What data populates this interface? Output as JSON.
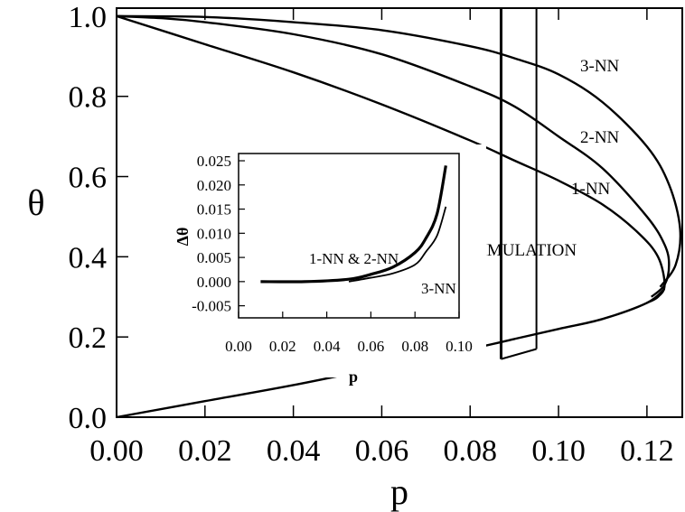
{
  "chart_data": [
    {
      "type": "line",
      "xlabel": "p",
      "ylabel": "θ",
      "xlim": [
        0.0,
        0.128
      ],
      "ylim": [
        0.0,
        1.02
      ],
      "xticks": [
        "0.00",
        "0.02",
        "0.04",
        "0.06",
        "0.08",
        "0.10",
        "0.12"
      ],
      "yticks": [
        "0.0",
        "0.2",
        "0.4",
        "0.6",
        "0.8",
        "1.0"
      ],
      "grid": false,
      "lower_branch": {
        "x": [
          0.0,
          0.02,
          0.04,
          0.06,
          0.08,
          0.09,
          0.1,
          0.11,
          0.12,
          0.124
        ],
        "y": [
          0.0,
          0.04,
          0.08,
          0.125,
          0.17,
          0.195,
          0.22,
          0.245,
          0.285,
          0.32
        ]
      },
      "series": [
        {
          "name": "1-NN",
          "x": [
            0.0,
            0.02,
            0.04,
            0.06,
            0.08,
            0.09,
            0.1,
            0.11,
            0.118,
            0.1225,
            0.124,
            0.1225,
            0.12
          ],
          "y": [
            1.0,
            0.93,
            0.86,
            0.78,
            0.69,
            0.64,
            0.59,
            0.53,
            0.46,
            0.4,
            0.33,
            0.3,
            0.285
          ]
        },
        {
          "name": "2-NN",
          "x": [
            0.0,
            0.01,
            0.02,
            0.04,
            0.06,
            0.08,
            0.09,
            0.1,
            0.11,
            0.12,
            0.124,
            0.125,
            0.124,
            0.121
          ],
          "y": [
            1.0,
            0.995,
            0.985,
            0.955,
            0.905,
            0.825,
            0.775,
            0.7,
            0.62,
            0.5,
            0.43,
            0.38,
            0.33,
            0.3
          ]
        },
        {
          "name": "3-NN",
          "x": [
            0.0,
            0.02,
            0.04,
            0.06,
            0.08,
            0.09,
            0.1,
            0.11,
            0.12,
            0.125,
            0.1275,
            0.1265,
            0.123
          ],
          "y": [
            1.0,
            0.998,
            0.985,
            0.965,
            0.925,
            0.895,
            0.855,
            0.785,
            0.675,
            0.58,
            0.47,
            0.38,
            0.325
          ]
        }
      ],
      "simulation": {
        "label": "SIMULATION",
        "x_lines": [
          0.087,
          0.095
        ],
        "y_top": 1.02,
        "bottom_y": [
          0.145,
          0.17
        ]
      },
      "annotations": [
        "3-NN",
        "2-NN",
        "1-NN",
        "SIMULATION"
      ]
    },
    {
      "type": "line",
      "xlabel": "p",
      "ylabel": "Δθ",
      "xlim": [
        0.0,
        0.1
      ],
      "ylim": [
        -0.0075,
        0.0265
      ],
      "xticks": [
        "0.00",
        "0.02",
        "0.04",
        "0.06",
        "0.08",
        "0.10"
      ],
      "yticks": [
        "-0.005",
        "0.000",
        "0.005",
        "0.010",
        "0.015",
        "0.020",
        "0.025"
      ],
      "series": [
        {
          "name": "1-NN & 2-NN",
          "x": [
            0.01,
            0.03,
            0.05,
            0.06,
            0.07,
            0.08,
            0.085,
            0.09,
            0.094
          ],
          "y": [
            0.0,
            0.0,
            0.0005,
            0.0015,
            0.003,
            0.006,
            0.009,
            0.014,
            0.024
          ]
        },
        {
          "name": "3-NN",
          "x": [
            0.05,
            0.06,
            0.07,
            0.08,
            0.085,
            0.09,
            0.094
          ],
          "y": [
            0.0,
            0.0008,
            0.0017,
            0.0035,
            0.0062,
            0.0095,
            0.0155
          ]
        }
      ],
      "annotations": [
        "1-NN & 2-NN",
        "3-NN"
      ]
    }
  ]
}
